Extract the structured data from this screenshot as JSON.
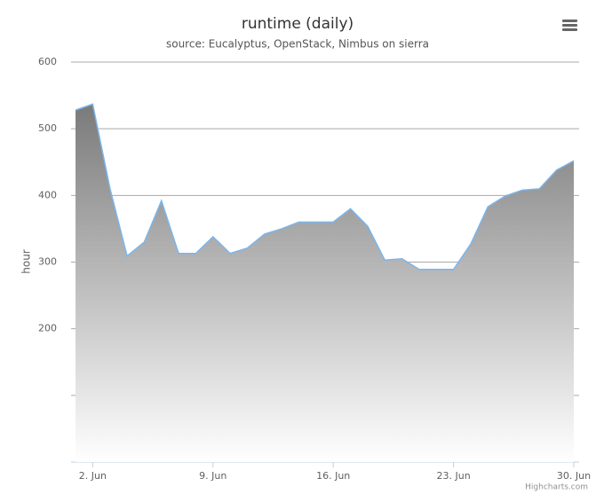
{
  "chart_data": {
    "type": "area",
    "title": "runtime (daily)",
    "subtitle": "source: Eucalyptus, OpenStack, Nimbus on sierra",
    "y_label": "hour",
    "credits": "Highcharts.com",
    "x": [
      1,
      2,
      3,
      4,
      5,
      6,
      7,
      8,
      9,
      10,
      11,
      12,
      13,
      14,
      15,
      16,
      17,
      18,
      19,
      20,
      21,
      22,
      23,
      24,
      25,
      26,
      27,
      28,
      29,
      30
    ],
    "series": [
      {
        "name": "runtime",
        "color": "#7cb5ec",
        "values": [
          528,
          537,
          411,
          309,
          330,
          392,
          313,
          313,
          338,
          313,
          321,
          342,
          350,
          360,
          360,
          360,
          380,
          354,
          303,
          305,
          289,
          289,
          289,
          327,
          383,
          399,
          408,
          410,
          438,
          452
        ]
      }
    ],
    "xlim": [
      0.74,
      30.31
    ],
    "xticks": [
      {
        "value": 2,
        "label": "2. Jun"
      },
      {
        "value": 9,
        "label": "9. Jun"
      },
      {
        "value": 16,
        "label": "16. Jun"
      },
      {
        "value": 23,
        "label": "23. Jun"
      },
      {
        "value": 30,
        "label": "30. Jun"
      }
    ],
    "ylim": [
      0,
      600
    ],
    "yticks": [
      {
        "value": 100,
        "label": null
      },
      200,
      300,
      400,
      500,
      600
    ],
    "grid": true
  }
}
